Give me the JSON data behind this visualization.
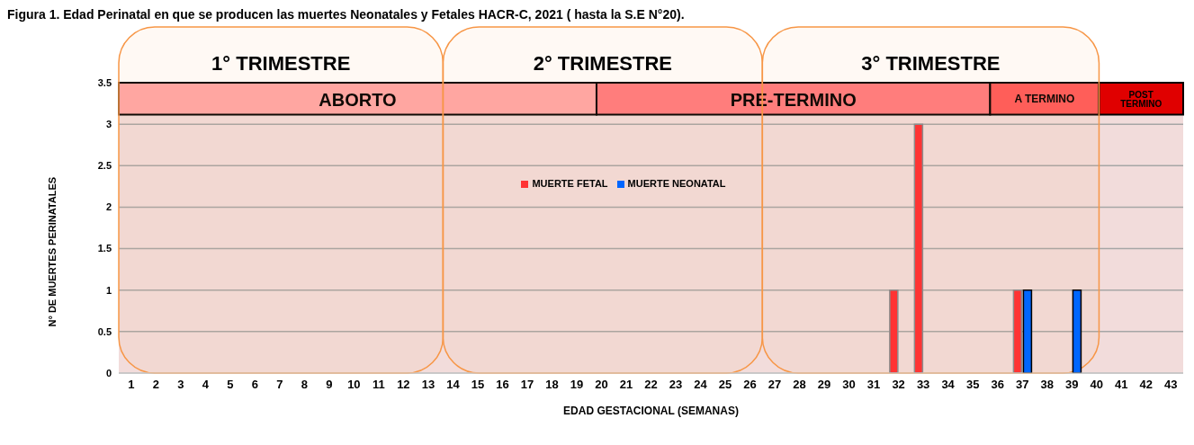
{
  "chart_data": {
    "type": "bar",
    "title": "Figura 1. Edad Perinatal en que se producen las muertes Neonatales y Fetales HACR-C, 2021 ( hasta la S.E N°20).",
    "xlabel": "EDAD GESTACIONAL (SEMANAS)",
    "ylabel": "N° DE MUERTES PERINATALES",
    "x": [
      1,
      2,
      3,
      4,
      5,
      6,
      7,
      8,
      9,
      10,
      11,
      12,
      13,
      14,
      15,
      16,
      17,
      18,
      19,
      20,
      21,
      22,
      23,
      24,
      25,
      26,
      27,
      28,
      29,
      30,
      31,
      32,
      33,
      34,
      35,
      36,
      37,
      38,
      39,
      40,
      41,
      42,
      43
    ],
    "series": [
      {
        "name": "MUERTE FETAL",
        "color": "#ff3333",
        "values": [
          0,
          0,
          0,
          0,
          0,
          0,
          0,
          0,
          0,
          0,
          0,
          0,
          0,
          0,
          0,
          0,
          0,
          0,
          0,
          0,
          0,
          0,
          0,
          0,
          0,
          0,
          0,
          0,
          0,
          0,
          0,
          1,
          3,
          0,
          0,
          0,
          1,
          0,
          0,
          0,
          0,
          0,
          0
        ]
      },
      {
        "name": "MUERTE NEONATAL",
        "color": "#0066ff",
        "values": [
          0,
          0,
          0,
          0,
          0,
          0,
          0,
          0,
          0,
          0,
          0,
          0,
          0,
          0,
          0,
          0,
          0,
          0,
          0,
          0,
          0,
          0,
          0,
          0,
          0,
          0,
          0,
          0,
          0,
          0,
          0,
          0,
          0,
          0,
          0,
          0,
          1,
          0,
          1,
          0,
          0,
          0,
          0
        ]
      }
    ],
    "xlim": [
      0.5,
      43.5
    ],
    "xticks": [
      1,
      2,
      3,
      4,
      5,
      6,
      7,
      8,
      9,
      10,
      11,
      12,
      13,
      14,
      15,
      16,
      17,
      18,
      19,
      20,
      21,
      22,
      23,
      24,
      25,
      26,
      27,
      28,
      29,
      30,
      31,
      32,
      33,
      34,
      35,
      36,
      37,
      38,
      39,
      40,
      41,
      42,
      43
    ],
    "ylim": [
      0,
      3.5
    ],
    "yticks": [
      0,
      0.5,
      1,
      1.5,
      2,
      2.5,
      3,
      3.5
    ],
    "grid": "y",
    "legend": "top",
    "bands": [
      {
        "axis": "x",
        "from": 0.5,
        "to": 19.8,
        "label": "ABORTO",
        "color": "#ffa7a7"
      },
      {
        "axis": "x",
        "from": 19.8,
        "to": 35.7,
        "label": "PRE-TERMINO",
        "color": "#ff7c80"
      },
      {
        "axis": "x",
        "from": 35.7,
        "to": 40.1,
        "label": "A TERMINO",
        "color": "#ff5b5b"
      },
      {
        "axis": "x",
        "from": 40.1,
        "to": 43.5,
        "label": "POST TERMINO",
        "color": "#e00000"
      },
      {
        "axis": "x",
        "from": 0.5,
        "to": 13.6,
        "label": "1° TRIMESTRE",
        "color": "#f79646"
      },
      {
        "axis": "x",
        "from": 13.6,
        "to": 26.5,
        "label": "2° TRIMESTRE",
        "color": "#f79646"
      },
      {
        "axis": "x",
        "from": 26.5,
        "to": 40.1,
        "label": "3° TRIMESTRE",
        "color": "#f79646"
      }
    ]
  }
}
